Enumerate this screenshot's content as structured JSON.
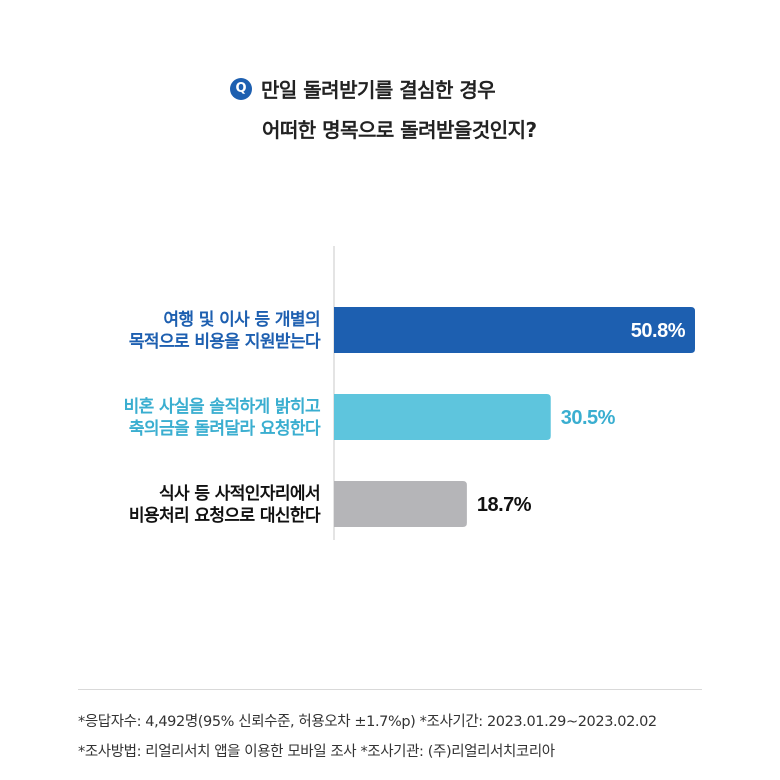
{
  "question": {
    "badge": "Q",
    "line1": "만일 돌려받기를 결심한 경우",
    "line2": "어떠한 명목으로 돌려받을것인지?"
  },
  "colors": {
    "badge": "#1d5fb0",
    "axis": "#c8c8c8"
  },
  "chart_data": {
    "type": "bar",
    "orientation": "horizontal",
    "xlim": [
      0,
      60
    ],
    "categories": [
      [
        "여행 및 이사 등 개별의",
        "목적으로 비용을 지원받는다"
      ],
      [
        "비혼 사실을 솔직하게 밝히고",
        "축의금을 돌려달라 요청한다"
      ],
      [
        "식사 등 사적인자리에서",
        "비용처리 요청으로 대신한다"
      ]
    ],
    "values": [
      50.8,
      30.5,
      18.7
    ],
    "value_labels": [
      "50.8%",
      "30.5%",
      "18.7%"
    ],
    "bar_colors": [
      "#1d5fb0",
      "#5ec5dd",
      "#b5b5b8"
    ],
    "label_colors": [
      "#1d5fb0",
      "#3aaed0",
      "#111111"
    ],
    "value_label_colors": [
      "#ffffff",
      "#3aaed0",
      "#111111"
    ],
    "value_label_positions": [
      "inside",
      "outside",
      "outside"
    ]
  },
  "footnotes": {
    "line1": "*응답자수: 4,492명(95% 신뢰수준, 허용오차 ±1.7%p)  *조사기간: 2023.01.29~2023.02.02",
    "line2": "*조사방법: 리얼리서치 앱을 이용한 모바일 조사  *조사기관: (주)리얼리서치코리아"
  }
}
